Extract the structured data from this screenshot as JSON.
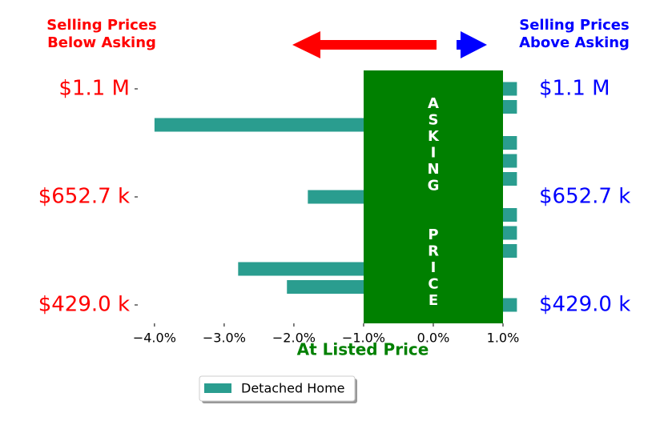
{
  "chart_data": {
    "type": "barh",
    "left_title": [
      "Selling Prices",
      "Below Asking"
    ],
    "right_title": [
      "Selling Prices",
      "Above Asking"
    ],
    "xlabel": "At Listed Price",
    "band_label": "ASKING  PRICE",
    "categories": [
      "$1.1 M",
      null,
      null,
      null,
      null,
      null,
      "$652.7 k",
      null,
      null,
      null,
      null,
      null,
      "$429.0 k"
    ],
    "series": [
      {
        "name": "Detached Home",
        "color": "#2a9d8f",
        "values": [
          1.2,
          1.2,
          -4.0,
          1.2,
          1.2,
          1.2,
          -1.8,
          1.2,
          1.2,
          1.2,
          -2.8,
          -2.1,
          1.2
        ]
      }
    ],
    "xlim": [
      -4.24,
      1.2
    ],
    "xticks": [
      {
        "value": -4.0,
        "label": "−4.0%"
      },
      {
        "value": -3.0,
        "label": "−3.0%"
      },
      {
        "value": -2.0,
        "label": "−2.0%"
      },
      {
        "value": -1.0,
        "label": "−1.0%"
      },
      {
        "value": 0.0,
        "label": "0.0%"
      },
      {
        "value": 1.0,
        "label": "1.0%"
      }
    ]
  }
}
